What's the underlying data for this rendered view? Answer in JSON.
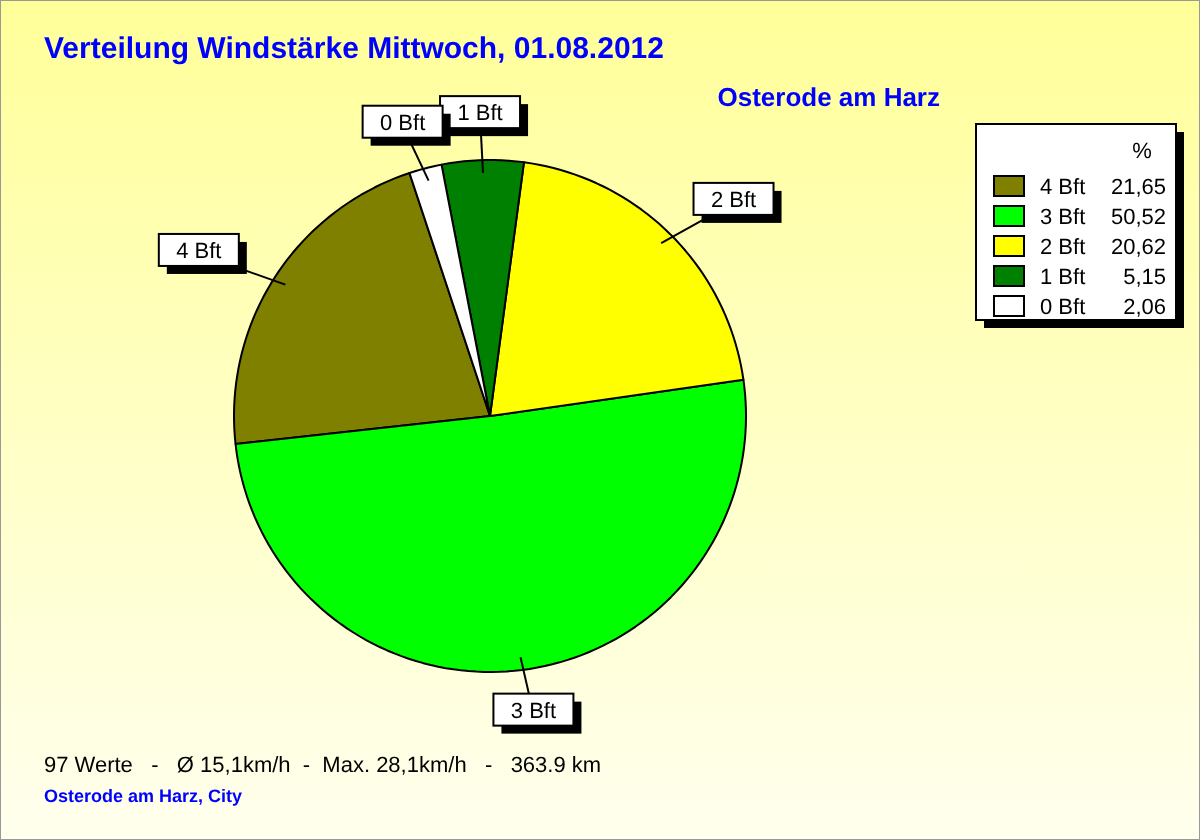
{
  "chart_data": {
    "type": "pie",
    "title": "Verteilung Windstärke  Mittwoch, 01.08.2012",
    "subtitle": "Osterode am Harz",
    "legend_title": "%",
    "categories": [
      "4 Bft",
      "3 Bft",
      "2 Bft",
      "1 Bft",
      "0 Bft"
    ],
    "values": [
      21.65,
      50.52,
      20.62,
      5.15,
      2.06
    ],
    "value_labels": [
      "21,65",
      "50,52",
      "20,62",
      "5,15",
      "2,06"
    ],
    "colors": [
      "#808000",
      "#00ff00",
      "#ffff00",
      "#008000",
      "#ffffff"
    ],
    "legend": "top right",
    "annotations": [
      "97 Werte   -   Ø 15,1km/h  -  Max. 28,1km/h   -   363.9 km",
      "Osterode am Harz, City"
    ]
  }
}
